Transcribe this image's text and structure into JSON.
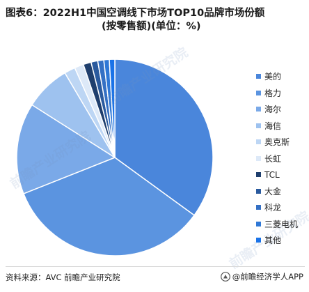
{
  "chart_data": {
    "type": "pie",
    "title": "图表6：2022H1中国空调线下市场TOP10品牌市场份额",
    "subtitle": "(按零售额)(单位：%)",
    "categories": [
      "美的",
      "格力",
      "海尔",
      "海信",
      "奥克斯",
      "长虹",
      "TCL",
      "大金",
      "科龙",
      "三菱电机",
      "其他"
    ],
    "values": [
      35.0,
      34.0,
      15.0,
      7.5,
      1.8,
      1.5,
      1.3,
      1.1,
      1.0,
      0.9,
      0.9
    ],
    "colors": [
      "#4a86db",
      "#5b94e0",
      "#7aa9e8",
      "#9ec2ef",
      "#bdd6f4",
      "#dde9f8",
      "#1f3f6e",
      "#2a5a9e",
      "#3470c4",
      "#2f78d6",
      "#1a73e8"
    ],
    "legend_position": "right"
  },
  "title_line1": "图表6：2022H1中国空调线下市场TOP10品牌市场份额",
  "title_line2": "(按零售额)(单位：%)",
  "footer": {
    "source": "资料来源：AVC 前瞻产业研究院",
    "brand": "@前瞻经济学人APP"
  },
  "watermark": {
    "text": "前瞻产业研究院",
    "subtext": "QIANZHAN INDUSTRY RESEARCH INSTITUTE"
  }
}
